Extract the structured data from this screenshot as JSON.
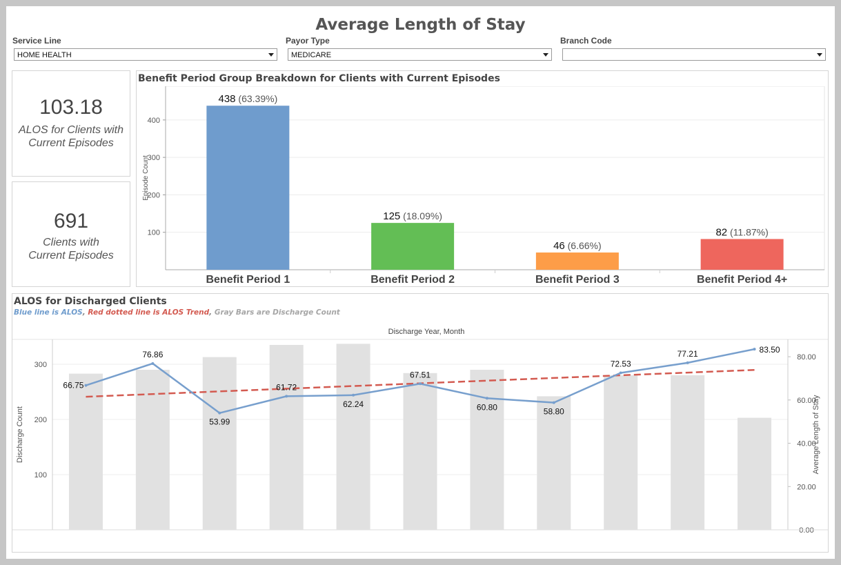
{
  "title": "Average Length of Stay",
  "filters": [
    {
      "label": "Service Line",
      "value": "HOME HEALTH"
    },
    {
      "label": "Payor Type",
      "value": "MEDICARE"
    },
    {
      "label": "Branch Code",
      "value": ""
    }
  ],
  "kpis": [
    {
      "value": "103.18",
      "label_line1": "ALOS for Clients with",
      "label_line2": "Current Episodes"
    },
    {
      "value": "691",
      "label_line1": "Clients with",
      "label_line2": "Current Episodes"
    }
  ],
  "colors": {
    "bp1": "#6f9ccd",
    "bp2": "#63be55",
    "bp3": "#fd9d48",
    "bp4": "#ee665d",
    "alos_line": "#779fcd",
    "trend_line": "#d35a50",
    "discharge_bars": "#e1e1e1"
  },
  "chart_data": [
    {
      "type": "bar",
      "title": "Benefit Period Group Breakdown for Clients with Current Episodes",
      "ylabel": "Episode Count",
      "xlabel": "",
      "categories": [
        "Benefit Period 1",
        "Benefit Period 2",
        "Benefit Period 3",
        "Benefit Period 4+"
      ],
      "values": [
        438,
        125,
        46,
        82
      ],
      "percent_labels": [
        "(63.39%)",
        "(18.09%)",
        "(6.66%)",
        "(11.87%)"
      ],
      "yticks": [
        "100",
        "200",
        "300",
        "400"
      ],
      "ylim": [
        0,
        490
      ],
      "grid": true
    },
    {
      "type": "bar",
      "title": "ALOS for Discharged Clients",
      "subtitle_parts": [
        {
          "text": "Blue line is ALOS",
          "color": "#6f9ccd"
        },
        {
          "text": ", ",
          "color": "#888888"
        },
        {
          "text": "Red dotted line is ALOS Trend",
          "color": "#d35a50"
        },
        {
          "text": ", ",
          "color": "#888888"
        },
        {
          "text": "Gray Bars are Discharge Count",
          "color": "#a6a6a6"
        }
      ],
      "xlabel": "Discharge Year, Month",
      "ylabel": "Discharge Count",
      "ylabel_right": "Average Length of Stay",
      "yticks_left": [
        "100",
        "200",
        "300"
      ],
      "yticks_right": [
        "0.00",
        "20.00",
        "40.00",
        "60.00",
        "80.00"
      ],
      "ylim_left": [
        0,
        345
      ],
      "ylim_right": [
        0,
        88
      ],
      "grid": true,
      "series": [
        {
          "type": "bar",
          "values": [
            283,
            290,
            313,
            335,
            337,
            284,
            290,
            242,
            280,
            280,
            203
          ]
        },
        {
          "type": "line",
          "values": [
            66.75,
            76.86,
            53.99,
            61.72,
            62.24,
            67.51,
            60.8,
            58.8,
            72.53,
            77.21,
            83.5
          ],
          "labels": [
            "66.75",
            "76.86",
            "53.99",
            "61.72",
            "62.24",
            "67.51",
            "60.80",
            "58.80",
            "72.53",
            "77.21",
            "83.50"
          ]
        },
        {
          "type": "trend",
          "values": [
            61.5,
            73.9
          ]
        }
      ]
    }
  ]
}
